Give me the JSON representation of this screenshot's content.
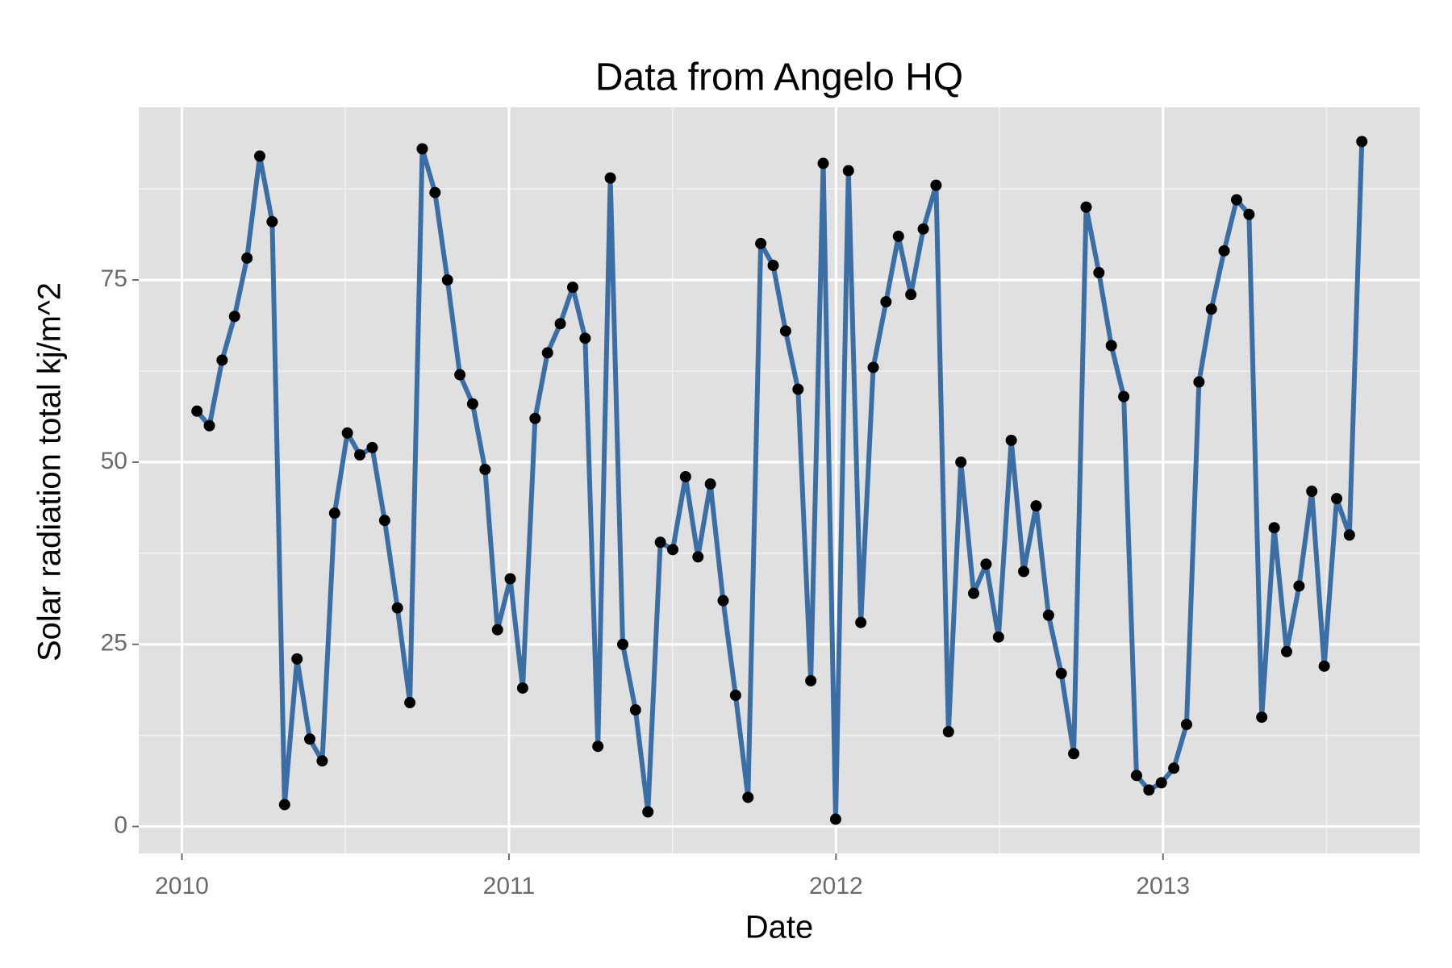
{
  "chart_data": {
    "type": "line",
    "title": "Data from Angelo HQ",
    "x_label": "Date",
    "y_label": "Solar radiation total kj/m^2",
    "x": [
      2010.046,
      2010.084,
      2010.123,
      2010.161,
      2010.199,
      2010.238,
      2010.276,
      2010.314,
      2010.352,
      2010.391,
      2010.429,
      2010.467,
      2010.506,
      2010.544,
      2010.582,
      2010.62,
      2010.659,
      2010.697,
      2010.735,
      2010.774,
      2010.812,
      2010.85,
      2010.889,
      2010.927,
      2010.965,
      2011.004,
      2011.042,
      2011.08,
      2011.118,
      2011.157,
      2011.195,
      2011.233,
      2011.272,
      2011.31,
      2011.348,
      2011.387,
      2011.425,
      2011.463,
      2011.501,
      2011.54,
      2011.578,
      2011.616,
      2011.655,
      2011.693,
      2011.731,
      2011.77,
      2011.808,
      2011.846,
      2011.884,
      2011.923,
      2011.961,
      2011.999,
      2012.038,
      2012.076,
      2012.114,
      2012.153,
      2012.191,
      2012.229,
      2012.267,
      2012.306,
      2012.344,
      2012.382,
      2012.421,
      2012.459,
      2012.497,
      2012.536,
      2012.574,
      2012.612,
      2012.65,
      2012.689,
      2012.727,
      2012.765,
      2012.804,
      2012.842,
      2012.88,
      2012.919,
      2012.957,
      2012.995,
      2013.033,
      2013.072,
      2013.11,
      2013.148,
      2013.187,
      2013.225,
      2013.263,
      2013.302,
      2013.34,
      2013.378,
      2013.416,
      2013.455,
      2013.493,
      2013.531,
      2013.57,
      2013.608
    ],
    "values": [
      57,
      55,
      64,
      70,
      78,
      92,
      83,
      3,
      23,
      12,
      9,
      43,
      54,
      51,
      52,
      42,
      30,
      17,
      93,
      87,
      75,
      62,
      58,
      49,
      27,
      34,
      19,
      56,
      65,
      69,
      74,
      67,
      11,
      89,
      25,
      16,
      2,
      39,
      38,
      48,
      37,
      47,
      31,
      18,
      4,
      80,
      77,
      68,
      60,
      20,
      91,
      1,
      90,
      28,
      63,
      72,
      81,
      73,
      82,
      88,
      13,
      50,
      32,
      36,
      26,
      53,
      35,
      44,
      29,
      21,
      10,
      85,
      76,
      66,
      59,
      7,
      5,
      6,
      8,
      14,
      61,
      71,
      79,
      86,
      84,
      15,
      41,
      24,
      33,
      46,
      22,
      45,
      40,
      94
    ],
    "color": "#3a6ea5",
    "point_color": "#000000",
    "xlim": [
      2009.868,
      2013.785
    ],
    "xticks": [
      2010,
      2011,
      2012,
      2013
    ],
    "xminor": [
      2010.5,
      2011.5,
      2012.5,
      2013.5
    ],
    "ylim": [
      -3.7,
      98.7
    ],
    "yticks": [
      0,
      25,
      50,
      75
    ],
    "yminor": [
      12.5,
      37.5,
      62.5,
      87.5
    ],
    "grid": true,
    "background": "#e0e0e0"
  }
}
